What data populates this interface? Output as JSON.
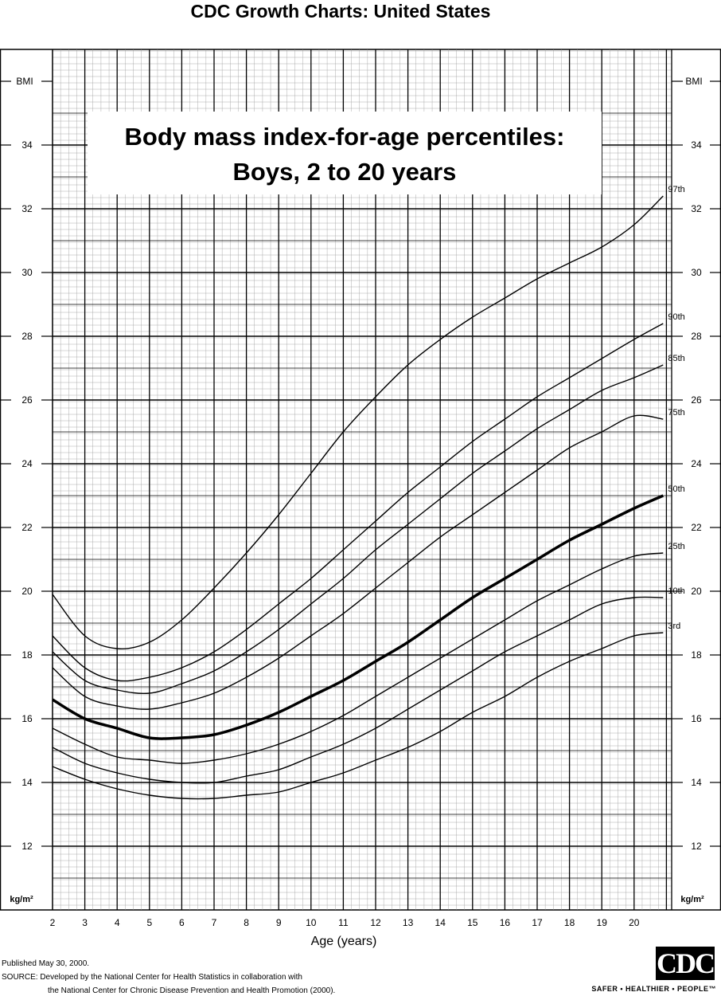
{
  "header": {
    "title": "CDC Growth Charts: United States"
  },
  "chart_data": {
    "type": "line",
    "title": "Body mass index-for-age percentiles:",
    "subtitle": "Boys, 2 to 20 years",
    "xlabel": "Age (years)",
    "ylabel": "BMI",
    "y_unit": "kg/m²",
    "xlim": [
      2,
      21
    ],
    "ylim": [
      11,
      35
    ],
    "x_ticks": [
      2,
      3,
      4,
      5,
      6,
      7,
      8,
      9,
      10,
      11,
      12,
      13,
      14,
      15,
      16,
      17,
      18,
      19,
      20
    ],
    "y_ticks": [
      12,
      14,
      16,
      18,
      20,
      22,
      24,
      26,
      28,
      30,
      32,
      34
    ],
    "grid": true,
    "x": [
      2,
      3,
      4,
      5,
      6,
      7,
      8,
      9,
      10,
      11,
      12,
      13,
      14,
      15,
      16,
      17,
      18,
      19,
      20,
      20.9
    ],
    "series": [
      {
        "name": "97th",
        "values": [
          19.9,
          18.6,
          18.2,
          18.4,
          19.1,
          20.1,
          21.2,
          22.4,
          23.7,
          25.0,
          26.1,
          27.1,
          27.9,
          28.6,
          29.2,
          29.8,
          30.3,
          30.8,
          31.5,
          32.4
        ]
      },
      {
        "name": "90th",
        "values": [
          18.6,
          17.6,
          17.2,
          17.3,
          17.6,
          18.1,
          18.8,
          19.6,
          20.4,
          21.3,
          22.2,
          23.1,
          23.9,
          24.7,
          25.4,
          26.1,
          26.7,
          27.3,
          27.9,
          28.4
        ]
      },
      {
        "name": "85th",
        "values": [
          18.1,
          17.2,
          16.9,
          16.8,
          17.1,
          17.5,
          18.1,
          18.8,
          19.6,
          20.4,
          21.3,
          22.1,
          22.9,
          23.7,
          24.4,
          25.1,
          25.7,
          26.3,
          26.7,
          27.1
        ]
      },
      {
        "name": "75th",
        "values": [
          17.6,
          16.7,
          16.4,
          16.3,
          16.5,
          16.8,
          17.3,
          17.9,
          18.6,
          19.3,
          20.1,
          20.9,
          21.7,
          22.4,
          23.1,
          23.8,
          24.5,
          25.0,
          25.5,
          25.4
        ]
      },
      {
        "name": "50th",
        "values": [
          16.6,
          16.0,
          15.7,
          15.4,
          15.4,
          15.5,
          15.8,
          16.2,
          16.7,
          17.2,
          17.8,
          18.4,
          19.1,
          19.8,
          20.4,
          21.0,
          21.6,
          22.1,
          22.6,
          23.0
        ]
      },
      {
        "name": "25th",
        "values": [
          15.7,
          15.2,
          14.8,
          14.7,
          14.6,
          14.7,
          14.9,
          15.2,
          15.6,
          16.1,
          16.7,
          17.3,
          17.9,
          18.5,
          19.1,
          19.7,
          20.2,
          20.7,
          21.1,
          21.2
        ]
      },
      {
        "name": "10th",
        "values": [
          15.1,
          14.6,
          14.3,
          14.1,
          14.0,
          14.0,
          14.2,
          14.4,
          14.8,
          15.2,
          15.7,
          16.3,
          16.9,
          17.5,
          18.1,
          18.6,
          19.1,
          19.6,
          19.8,
          19.8
        ]
      },
      {
        "name": "3rd",
        "values": [
          14.5,
          14.1,
          13.8,
          13.6,
          13.5,
          13.5,
          13.6,
          13.7,
          14.0,
          14.3,
          14.7,
          15.1,
          15.6,
          16.2,
          16.7,
          17.3,
          17.8,
          18.2,
          18.6,
          18.7
        ]
      }
    ]
  },
  "footer": {
    "published": "Published May 30, 2000.",
    "source_line1": "SOURCE: Developed by the National Center for Health Statistics in collaboration with",
    "source_line2": "the National Center for Chronic Disease Prevention and Health Promotion (2000).",
    "logo_text": "CDC",
    "tagline": "SAFER • HEALTHIER • PEOPLE™"
  }
}
